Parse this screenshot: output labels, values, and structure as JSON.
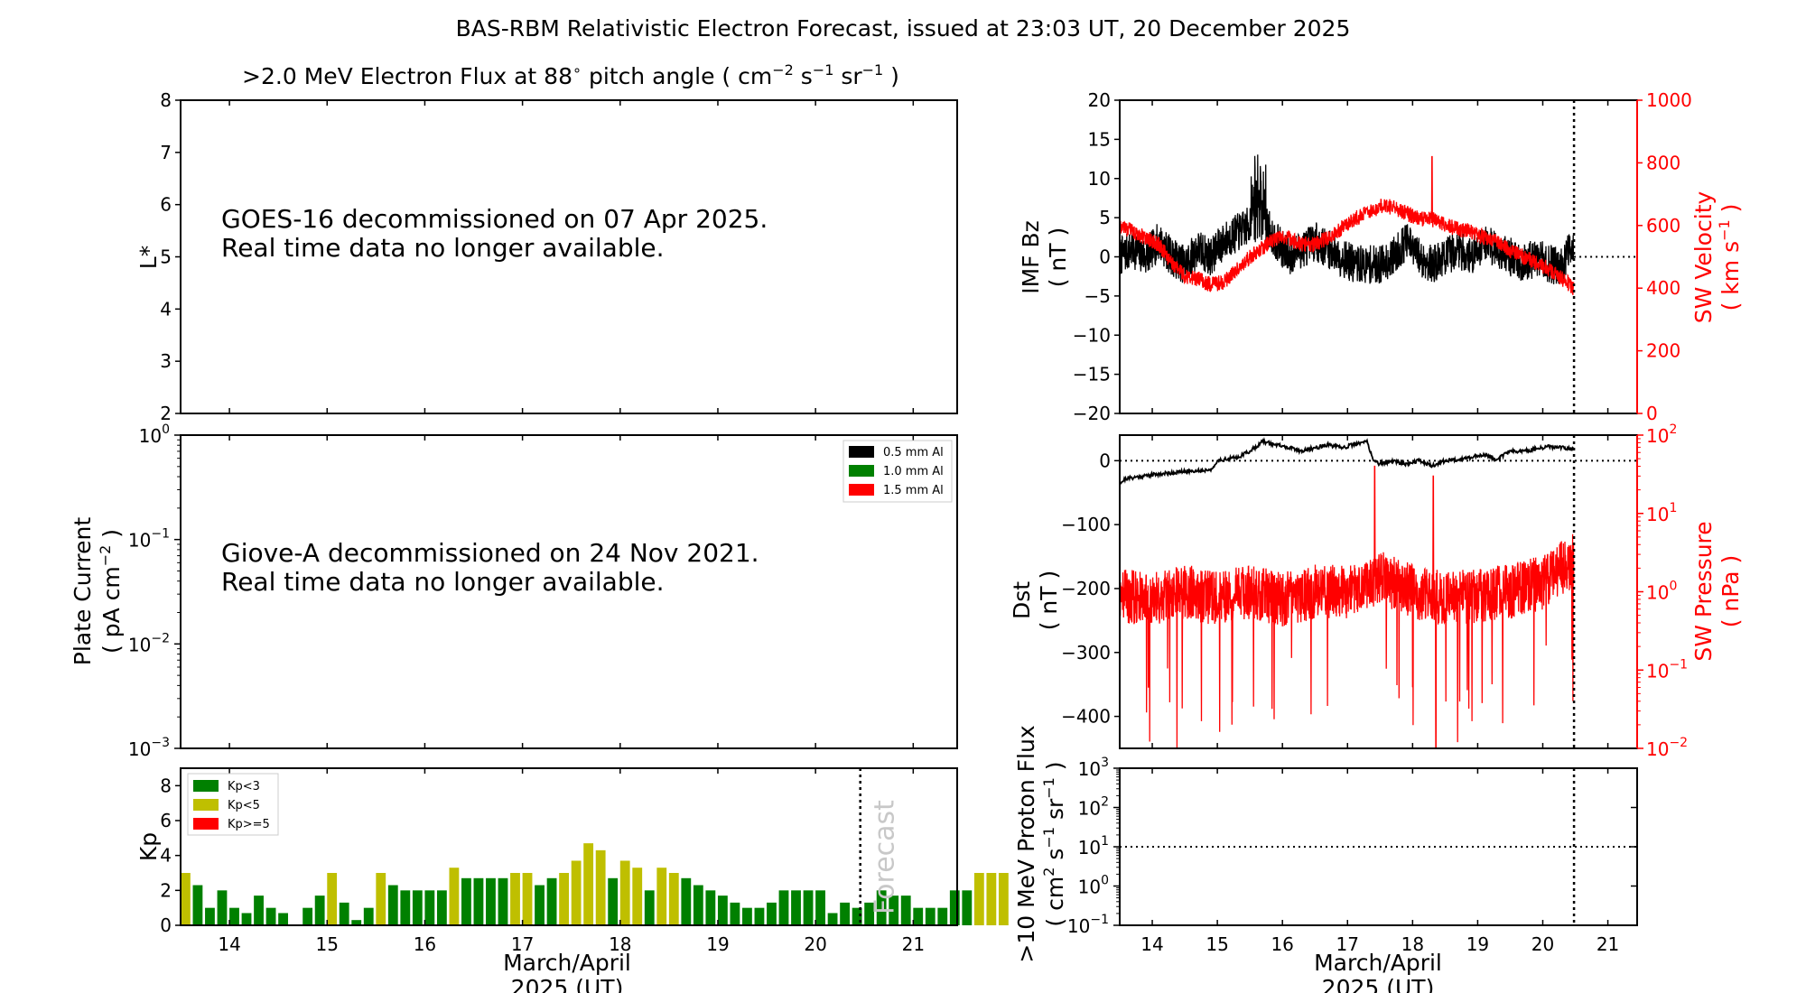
{
  "figure_title": "BAS-RBM Relativistic Electron Forecast, issued at 23:03 UT, 20 December 2025",
  "colors": {
    "axis": "#000000",
    "red": "#ff0000",
    "green": "#008000",
    "yellow": "#bfbf00",
    "forecast_text": "#c8c8c8"
  },
  "panels": {
    "flux": {
      "title_prefix": ">2.0 MeV Electron Flux at 88",
      "title_deg": "∘",
      "title_unit_open": " pitch angle ( cm",
      "title_exp1": "−2",
      "title_s": " s",
      "title_exp2": "−1",
      "title_sr": " sr",
      "title_exp3": "−1",
      "title_close": " )",
      "ylabel": "L*",
      "message_line1": "GOES-16 decommissioned on 07 Apr 2025.",
      "message_line2": "Real time data no longer available."
    },
    "plate": {
      "ylabel_line1": "Plate Current",
      "ylabel_line2_prefix": "( pA cm",
      "ylabel_line2_exp": "−2",
      "ylabel_line2_suffix": " )",
      "message_line1": "Giove-A decommissioned on 24 Nov 2021.",
      "message_line2": "Real time data no longer available.",
      "legend": [
        "0.5 mm Al",
        "1.0 mm Al",
        "1.5 mm Al"
      ]
    },
    "kp": {
      "ylabel": "Kp",
      "legend": [
        "Kp<3",
        "Kp<5",
        "Kp>=5"
      ],
      "forecast_label": "Forecast",
      "xlabel_line1": "March/April",
      "xlabel_line2": "2025 (UT)"
    },
    "imf": {
      "ylabel_line1": "IMF Bz",
      "ylabel_line2": "( nT )",
      "ylabel_right_line1": "SW Velocity",
      "ylabel_right_line2_prefix": "( km s",
      "ylabel_right_line2_exp": "−1",
      "ylabel_right_line2_suffix": " )"
    },
    "dst": {
      "ylabel_line1": "Dst",
      "ylabel_line2": "( nT )",
      "ylabel_right_line1": "SW Pressure",
      "ylabel_right_line2": "( nPa )"
    },
    "proton": {
      "ylabel_line1": ">10 MeV Proton Flux",
      "ylabel_line2_a": "( cm",
      "ylabel_line2_exp1": "2",
      "ylabel_line2_b": " s",
      "ylabel_line2_exp2": "−1",
      "ylabel_line2_c": " sr",
      "ylabel_line2_exp3": "−1",
      "ylabel_line2_d": " )",
      "xlabel_line1": "March/April",
      "xlabel_line2": "2025 (UT)"
    }
  },
  "chart_data": [
    {
      "id": "flux",
      "type": "heatmap",
      "x_range": [
        13.5,
        21.45
      ],
      "x_ticks": [
        "14",
        "15",
        "16",
        "17",
        "18",
        "19",
        "20",
        "21"
      ],
      "ylim": [
        2,
        8
      ],
      "y_ticks": [
        "2",
        "3",
        "4",
        "5",
        "6",
        "7",
        "8"
      ],
      "series": []
    },
    {
      "id": "plate",
      "type": "line",
      "x_range": [
        13.5,
        21.45
      ],
      "y_scale": "log",
      "ylim": [
        0.001,
        1
      ],
      "y_tick_exponents": [
        "−3",
        "−2",
        "−1",
        "0"
      ],
      "series": [],
      "legend_position": "top-right"
    },
    {
      "id": "kp",
      "type": "bar",
      "x_range": [
        13.5,
        21.45
      ],
      "x_ticks": [
        "14",
        "15",
        "16",
        "17",
        "18",
        "19",
        "20",
        "21"
      ],
      "ylim": [
        0,
        9
      ],
      "y_ticks": [
        "0",
        "2",
        "4",
        "6",
        "8"
      ],
      "bar_interval_days": 0.125,
      "start_day": 13.5,
      "forecast_start_day": 20.458,
      "legend_position": "top-left",
      "values": [
        3.0,
        2.3,
        1.0,
        2.0,
        1.0,
        0.7,
        1.7,
        1.0,
        0.7,
        0.0,
        1.0,
        1.7,
        3.0,
        1.3,
        0.3,
        1.0,
        3.0,
        2.3,
        2.0,
        2.0,
        2.0,
        2.0,
        3.3,
        2.7,
        2.7,
        2.7,
        2.7,
        3.0,
        3.0,
        2.3,
        2.7,
        3.0,
        3.7,
        4.7,
        4.3,
        2.7,
        3.7,
        3.3,
        2.0,
        3.3,
        3.0,
        2.7,
        2.3,
        2.0,
        1.7,
        1.3,
        1.0,
        1.0,
        1.3,
        2.0,
        2.0,
        2.0,
        2.0,
        0.7,
        1.3,
        1.0,
        1.3,
        2.0,
        1.7,
        1.7,
        1.0,
        1.0,
        1.0,
        2.0,
        2.0,
        3.0,
        3.0,
        3.0
      ]
    },
    {
      "id": "imf",
      "type": "line",
      "x_range": [
        13.5,
        21.45
      ],
      "x_ticks": [
        "14",
        "15",
        "16",
        "17",
        "18",
        "19",
        "20",
        "21"
      ],
      "ylim": [
        -20,
        20
      ],
      "y_ticks": [
        "−20",
        "−15",
        "−10",
        "−5",
        "0",
        "5",
        "10",
        "15",
        "20"
      ],
      "y2lim": [
        0,
        1000
      ],
      "y2_ticks": [
        "0",
        "200",
        "400",
        "600",
        "800",
        "1000"
      ],
      "now_day": 20.48,
      "forecast_level": 0,
      "series": [
        {
          "axis": "left",
          "x": [
            13.5,
            13.7,
            13.9,
            14.1,
            14.3,
            14.5,
            14.7,
            14.9,
            15.1,
            15.3,
            15.5,
            15.6,
            15.7,
            15.9,
            16.1,
            16.3,
            16.5,
            16.7,
            16.9,
            17.1,
            17.3,
            17.5,
            17.7,
            17.9,
            18.1,
            18.3,
            18.5,
            18.7,
            18.9,
            19.1,
            19.3,
            19.5,
            19.7,
            19.9,
            20.1,
            20.3,
            20.48
          ],
          "values": [
            0,
            1,
            0,
            2,
            0,
            -1,
            1,
            0,
            2,
            3,
            4,
            6,
            5,
            2,
            0,
            1,
            2,
            1,
            0,
            -1,
            -1,
            -1,
            0,
            2,
            0,
            -1,
            0,
            1,
            0,
            2,
            1,
            0,
            -1,
            0,
            -1,
            -1,
            2
          ],
          "noise": 2.5
        },
        {
          "axis": "right",
          "x": [
            13.5,
            13.7,
            13.9,
            14.1,
            14.3,
            14.5,
            14.7,
            14.9,
            15.1,
            15.3,
            15.5,
            15.7,
            15.9,
            16.1,
            16.3,
            16.5,
            16.7,
            16.9,
            17.1,
            17.3,
            17.5,
            17.7,
            17.9,
            18.1,
            18.3,
            18.5,
            18.7,
            18.9,
            19.1,
            19.3,
            19.5,
            19.7,
            19.9,
            20.1,
            20.3,
            20.48
          ],
          "values": [
            600,
            580,
            560,
            540,
            480,
            440,
            430,
            410,
            420,
            460,
            500,
            530,
            560,
            560,
            540,
            540,
            560,
            590,
            620,
            640,
            660,
            660,
            640,
            620,
            620,
            600,
            590,
            580,
            560,
            550,
            520,
            500,
            480,
            460,
            430,
            400
          ],
          "noise": 25
        }
      ]
    },
    {
      "id": "dst",
      "type": "line",
      "x_range": [
        13.5,
        21.45
      ],
      "ylim": [
        -450,
        40
      ],
      "y_ticks": [
        "−400",
        "−300",
        "−200",
        "−100",
        "0"
      ],
      "y2_scale": "log",
      "y2lim": [
        0.01,
        100
      ],
      "y2_tick_exponents": [
        "−2",
        "−1",
        "0",
        "1",
        "2"
      ],
      "now_day": 20.48,
      "series": [
        {
          "axis": "left",
          "x": [
            13.5,
            13.6,
            13.8,
            14.0,
            14.2,
            14.4,
            14.6,
            14.8,
            14.95,
            15.0,
            15.1,
            15.3,
            15.5,
            15.7,
            15.9,
            16.1,
            16.3,
            16.5,
            16.7,
            16.9,
            17.1,
            17.3,
            17.4,
            17.5,
            17.7,
            17.9,
            18.1,
            18.3,
            18.5,
            18.7,
            18.9,
            19.1,
            19.3,
            19.5,
            19.7,
            19.9,
            20.1,
            20.3,
            20.48
          ],
          "values": [
            -35,
            -28,
            -25,
            -22,
            -20,
            -18,
            -16,
            -15,
            -12,
            0,
            2,
            5,
            15,
            30,
            25,
            20,
            15,
            20,
            25,
            20,
            25,
            30,
            0,
            -5,
            0,
            -5,
            0,
            -8,
            0,
            2,
            5,
            10,
            2,
            15,
            15,
            18,
            22,
            20,
            18
          ],
          "noise": 3
        },
        {
          "axis": "right",
          "x": [
            13.5,
            14.0,
            14.5,
            15.0,
            15.5,
            16.0,
            16.5,
            17.0,
            17.5,
            18.0,
            18.5,
            19.0,
            19.5,
            20.0,
            20.2,
            20.48
          ],
          "values": [
            0.9,
            0.8,
            1.0,
            0.8,
            1.0,
            0.8,
            1.0,
            1.0,
            1.5,
            1.0,
            0.8,
            0.9,
            1.0,
            1.3,
            1.8,
            2.5
          ],
          "noise_log10": 0.35
        }
      ]
    },
    {
      "id": "proton",
      "type": "line",
      "x_range": [
        13.5,
        21.45
      ],
      "x_ticks": [
        "14",
        "15",
        "16",
        "17",
        "18",
        "19",
        "20",
        "21"
      ],
      "y_scale": "log",
      "ylim": [
        0.1,
        1000
      ],
      "y_tick_exponents": [
        "−1",
        "0",
        "1",
        "2",
        "3"
      ],
      "threshold": 10,
      "now_day": 20.48,
      "series": []
    }
  ]
}
